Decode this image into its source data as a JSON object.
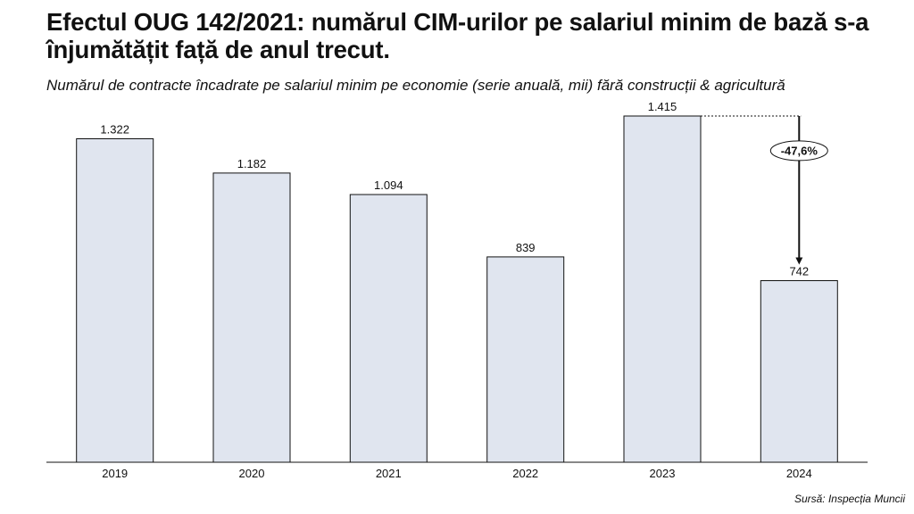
{
  "header": {
    "title": "Efectul OUG 142/2021: numărul CIM-urilor pe salariul minim de bază s-a înjumătățit față de anul trecut.",
    "subtitle": "Numărul de contracte încadrate pe salariul minim pe economie (serie anuală, mii) fără construcții & agricultură"
  },
  "footer": {
    "source": "Sursă: Inspecția Muncii"
  },
  "chart_data": {
    "type": "bar",
    "categories": [
      "2019",
      "2020",
      "2021",
      "2022",
      "2023",
      "2024"
    ],
    "values": [
      1322,
      1182,
      1094,
      839,
      1415,
      742
    ],
    "value_labels": [
      "1.322",
      "1.182",
      "1.094",
      "839",
      "1.415",
      "742"
    ],
    "ylim": [
      0,
      1415
    ],
    "grid": false,
    "bar_color": "#e0e5ef",
    "bar_stroke": "#111111",
    "annotation": {
      "from": "2023",
      "to": "2024",
      "label": "-47,6%"
    }
  }
}
